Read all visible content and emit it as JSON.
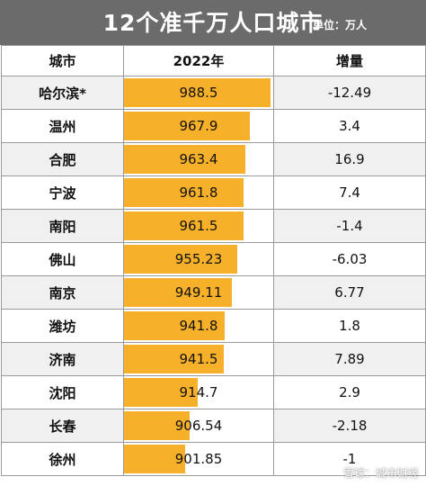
{
  "header": {
    "title": "12个准千万人口城市",
    "unit": "单位：万人"
  },
  "table": {
    "columns": [
      "城市",
      "2022年",
      "增量"
    ],
    "rows": [
      {
        "city": "哈尔滨*",
        "value": "988.5",
        "delta": "-12.49"
      },
      {
        "city": "温州",
        "value": "967.9",
        "delta": "3.4"
      },
      {
        "city": "合肥",
        "value": "963.4",
        "delta": "16.9"
      },
      {
        "city": "宁波",
        "value": "961.8",
        "delta": "7.4"
      },
      {
        "city": "南阳",
        "value": "961.5",
        "delta": "-1.4"
      },
      {
        "city": "佛山",
        "value": "955.23",
        "delta": "-6.03"
      },
      {
        "city": "南京",
        "value": "949.11",
        "delta": "6.77"
      },
      {
        "city": "潍坊",
        "value": "941.8",
        "delta": "1.8"
      },
      {
        "city": "济南",
        "value": "941.5",
        "delta": "7.89"
      },
      {
        "city": "沈阳",
        "value": "914.7",
        "delta": "2.9"
      },
      {
        "city": "长春",
        "value": "906.54",
        "delta": "-2.18"
      },
      {
        "city": "徐州",
        "value": "901.85",
        "delta": "-1"
      }
    ],
    "bar_color": "#f7b02a"
  },
  "watermark": "雪球：城市财经"
}
